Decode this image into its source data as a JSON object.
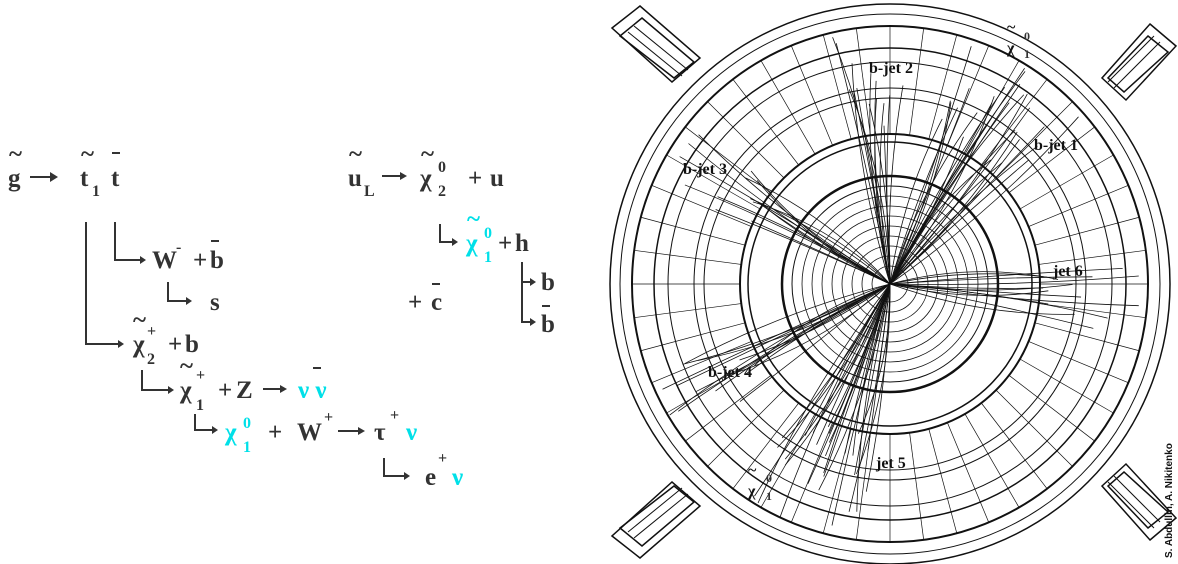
{
  "colors": {
    "text": "#333333",
    "lsp": "#00e0e8",
    "event_ink": "#111111"
  },
  "decay_chain": {
    "gluino": "g",
    "stop": "t",
    "stop_index": "1",
    "top_bar": "t",
    "w_minus": "W",
    "w_minus_sign": "-",
    "plus": "+",
    "b_bar": "b",
    "s_quark": "s",
    "chargino2": "χ",
    "chargino2_index": "2",
    "chargino_sign": "+",
    "b_quark": "b",
    "chargino1": "χ",
    "chargino1_index": "1",
    "z_boson": "Z",
    "nu_nubar": "ν ν",
    "neutralino": "χ",
    "neutralino_sup": "0",
    "neutralino_index": "1",
    "w_plus": "W",
    "w_plus_sign": "+",
    "tau": "τ",
    "tau_sign": "+",
    "nu": "ν",
    "positron": "e",
    "positron_sign": "+"
  },
  "squark_chain": {
    "squark": "u",
    "squark_index": "L",
    "neutralino2": "χ",
    "neutralino2_sup": "0",
    "neutralino2_index": "2",
    "plus": "+",
    "u_quark": "u",
    "neutralino1": "χ",
    "neutralino1_sup": "0",
    "neutralino1_index": "1",
    "higgs": "h",
    "b_quark": "b",
    "b_bar": "b",
    "c_bar": "c"
  },
  "event_display": {
    "labels": {
      "bjet1": "b-jet 1",
      "bjet2": "b-jet 2",
      "bjet3": "b-jet 3",
      "bjet4": "b-jet 4",
      "jet5": "jet 5",
      "jet6": "jet 6",
      "lsp_top": "χ",
      "lsp_top_sup": "0",
      "lsp_top_index": "1",
      "lsp_bottom": "χ",
      "lsp_bottom_sup": "0",
      "lsp_bottom_index": "1"
    },
    "credit": "S. Abdullin, A. Nikitenko"
  }
}
